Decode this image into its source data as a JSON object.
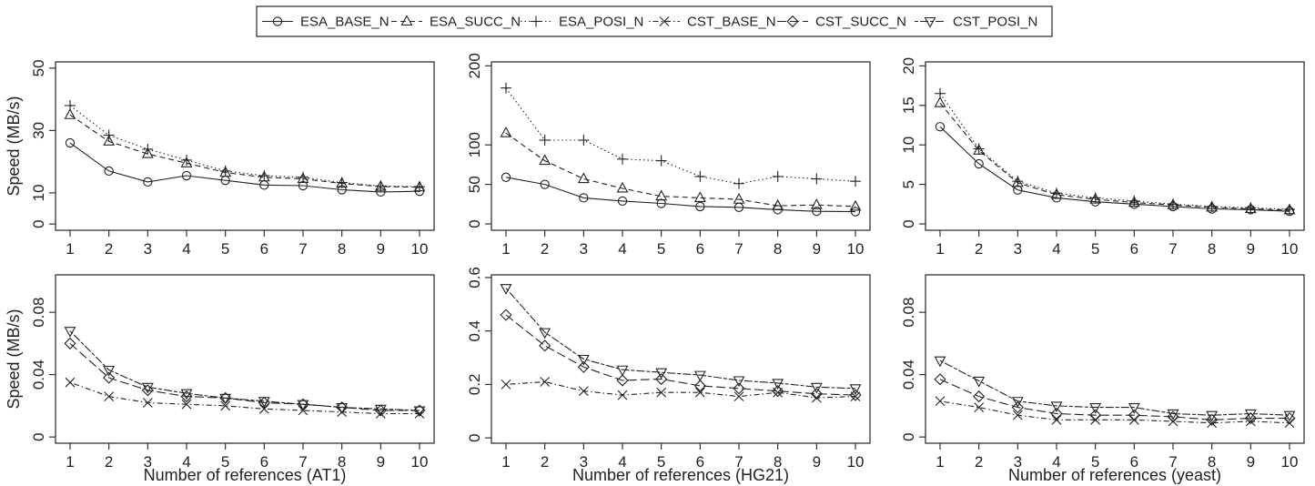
{
  "legend": {
    "entries": [
      {
        "name": "ESA_BASE_N",
        "marker": "circle",
        "dash": "solid"
      },
      {
        "name": "ESA_SUCC_N",
        "marker": "triangle-up",
        "dash": "dashed"
      },
      {
        "name": "ESA_POSI_N",
        "marker": "plus",
        "dash": "dotted"
      },
      {
        "name": "CST_BASE_N",
        "marker": "cross",
        "dash": "dotdash"
      },
      {
        "name": "CST_SUCC_N",
        "marker": "diamond",
        "dash": "longdash"
      },
      {
        "name": "CST_POSI_N",
        "marker": "triangle-down",
        "dash": "twodash"
      }
    ],
    "placement": "top-center"
  },
  "chart_data": [
    {
      "type": "line",
      "xlabel": "",
      "ylabel": "Speed (MB/s)",
      "x": [
        1,
        2,
        3,
        4,
        5,
        6,
        7,
        8,
        9,
        10
      ],
      "ylim": [
        -2,
        52
      ],
      "yticks": [
        0,
        10,
        30,
        50
      ],
      "grid": false,
      "series": [
        {
          "name": "ESA_BASE_N",
          "values": [
            26,
            17,
            13.5,
            15.5,
            14,
            12.5,
            12.3,
            11,
            10.3,
            10.5
          ]
        },
        {
          "name": "ESA_SUCC_N",
          "values": [
            35,
            26.5,
            22.5,
            19.5,
            16.5,
            15,
            14.5,
            13,
            12,
            11.8
          ]
        },
        {
          "name": "ESA_POSI_N",
          "values": [
            38,
            28.5,
            24,
            20.5,
            17,
            15.5,
            15,
            13.3,
            12.2,
            12
          ]
        }
      ]
    },
    {
      "type": "line",
      "xlabel": "",
      "ylabel": "",
      "x": [
        1,
        2,
        3,
        4,
        5,
        6,
        7,
        8,
        9,
        10
      ],
      "ylim": [
        -8,
        205
      ],
      "yticks": [
        0,
        50,
        100,
        200
      ],
      "grid": false,
      "series": [
        {
          "name": "ESA_BASE_N",
          "values": [
            59,
            50,
            33,
            29,
            26,
            22,
            21,
            18,
            16,
            15.5
          ]
        },
        {
          "name": "ESA_SUCC_N",
          "values": [
            115,
            80,
            57,
            45,
            35,
            33,
            31,
            23,
            24,
            22
          ]
        },
        {
          "name": "ESA_POSI_N",
          "values": [
            172,
            106,
            106,
            82,
            80,
            60,
            51,
            60,
            57,
            54
          ]
        }
      ]
    },
    {
      "type": "line",
      "xlabel": "",
      "ylabel": "",
      "x": [
        1,
        2,
        3,
        4,
        5,
        6,
        7,
        8,
        9,
        10
      ],
      "ylim": [
        -0.8,
        20.5
      ],
      "yticks": [
        0,
        5,
        10,
        15,
        20
      ],
      "grid": false,
      "series": [
        {
          "name": "ESA_BASE_N",
          "values": [
            12.3,
            7.6,
            4.3,
            3.3,
            2.8,
            2.5,
            2.2,
            1.9,
            1.8,
            1.6
          ]
        },
        {
          "name": "ESA_SUCC_N",
          "values": [
            15.3,
            9.3,
            5.2,
            3.7,
            3.1,
            2.7,
            2.4,
            2.1,
            1.9,
            1.75
          ]
        },
        {
          "name": "ESA_POSI_N",
          "values": [
            16.5,
            9.5,
            5.4,
            3.9,
            3.3,
            2.9,
            2.5,
            2.2,
            2.05,
            1.85
          ]
        }
      ]
    },
    {
      "type": "line",
      "xlabel": "Number of references (AT1)",
      "ylabel": "Speed (MB/s)",
      "x": [
        1,
        2,
        3,
        4,
        5,
        6,
        7,
        8,
        9,
        10
      ],
      "ylim": [
        -0.004,
        0.104
      ],
      "yticks": [
        0.0,
        0.04,
        0.08
      ],
      "grid": false,
      "series": [
        {
          "name": "CST_BASE_N",
          "values": [
            0.035,
            0.026,
            0.022,
            0.021,
            0.02,
            0.018,
            0.017,
            0.016,
            0.015,
            0.015
          ]
        },
        {
          "name": "CST_SUCC_N",
          "values": [
            0.06,
            0.038,
            0.03,
            0.026,
            0.025,
            0.022,
            0.021,
            0.019,
            0.017,
            0.017
          ]
        },
        {
          "name": "CST_POSI_N",
          "values": [
            0.068,
            0.043,
            0.032,
            0.028,
            0.025,
            0.023,
            0.021,
            0.019,
            0.018,
            0.017
          ]
        }
      ]
    },
    {
      "type": "line",
      "xlabel": "Number of references (HG21)",
      "ylabel": "",
      "x": [
        1,
        2,
        3,
        4,
        5,
        6,
        7,
        8,
        9,
        10
      ],
      "ylim": [
        -0.02,
        0.61
      ],
      "yticks": [
        0.0,
        0.2,
        0.4,
        0.6
      ],
      "grid": false,
      "series": [
        {
          "name": "CST_BASE_N",
          "values": [
            0.2,
            0.21,
            0.175,
            0.16,
            0.17,
            0.17,
            0.155,
            0.17,
            0.15,
            0.155
          ]
        },
        {
          "name": "CST_SUCC_N",
          "values": [
            0.46,
            0.345,
            0.265,
            0.215,
            0.22,
            0.195,
            0.185,
            0.175,
            0.165,
            0.16
          ]
        },
        {
          "name": "CST_POSI_N",
          "values": [
            0.56,
            0.395,
            0.295,
            0.255,
            0.245,
            0.235,
            0.215,
            0.205,
            0.19,
            0.185
          ]
        }
      ]
    },
    {
      "type": "line",
      "xlabel": "Number of references (yeast)",
      "ylabel": "",
      "x": [
        1,
        2,
        3,
        4,
        5,
        6,
        7,
        8,
        9,
        10
      ],
      "ylim": [
        -0.004,
        0.104
      ],
      "yticks": [
        0.0,
        0.04,
        0.08
      ],
      "grid": false,
      "series": [
        {
          "name": "CST_BASE_N",
          "values": [
            0.023,
            0.019,
            0.014,
            0.011,
            0.011,
            0.011,
            0.01,
            0.009,
            0.01,
            0.009
          ]
        },
        {
          "name": "CST_SUCC_N",
          "values": [
            0.037,
            0.026,
            0.019,
            0.015,
            0.014,
            0.014,
            0.013,
            0.011,
            0.012,
            0.012
          ]
        },
        {
          "name": "CST_POSI_N",
          "values": [
            0.049,
            0.036,
            0.023,
            0.02,
            0.019,
            0.019,
            0.015,
            0.014,
            0.015,
            0.014
          ]
        }
      ]
    }
  ]
}
